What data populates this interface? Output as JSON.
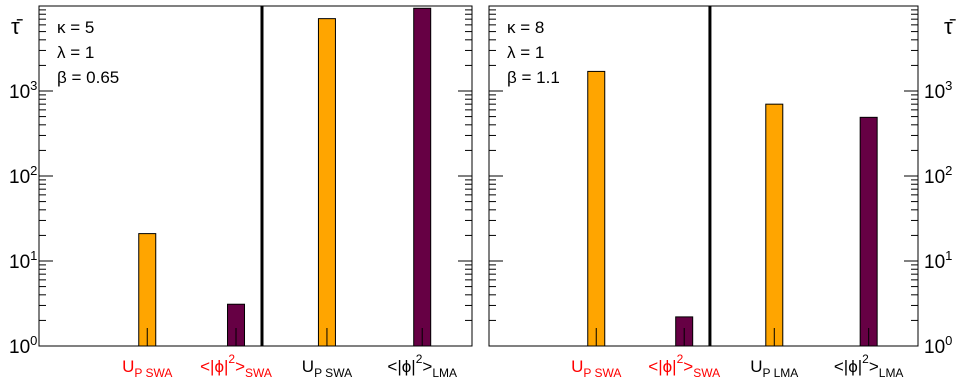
{
  "chart_data": [
    {
      "type": "bar",
      "panel": "left",
      "params": [
        "κ = 5",
        "λ = 1",
        "β = 0.65"
      ],
      "ylabel": "τ̄",
      "yscale": "log",
      "ylim": [
        1,
        10000
      ],
      "ytick_labels": [
        {
          "base": "10",
          "exp": "0"
        },
        {
          "base": "10",
          "exp": "1"
        },
        {
          "base": "10",
          "exp": "2"
        },
        {
          "base": "10",
          "exp": "3"
        }
      ],
      "categories": [
        {
          "main": "U",
          "sub": "P SWA",
          "sup": "",
          "color": "#ff0000"
        },
        {
          "main": "<|ϕ|",
          "sup": "2",
          "tail": ">",
          "sub": "SWA",
          "color": "#ff0000"
        },
        {
          "main": "U",
          "sub": "P SWA",
          "sup": "",
          "color": "#000000"
        },
        {
          "main": "<|ϕ|",
          "sup": "2",
          "tail": ">",
          "sub": "LMA",
          "color": "#000000"
        }
      ],
      "values": [
        21,
        3.1,
        7100,
        9400
      ],
      "bar_colors": [
        "#ffa500",
        "#660044",
        "#ffa500",
        "#660044"
      ],
      "error_bars": true,
      "divider_after_category": 2,
      "grid": false
    },
    {
      "type": "bar",
      "panel": "right",
      "params": [
        "κ = 8",
        "λ = 1",
        "β = 1.1"
      ],
      "ylabel": "τ̄",
      "yscale": "log",
      "ylim": [
        1,
        10000
      ],
      "ytick_labels": [
        {
          "base": "10",
          "exp": "0"
        },
        {
          "base": "10",
          "exp": "1"
        },
        {
          "base": "10",
          "exp": "2"
        },
        {
          "base": "10",
          "exp": "3"
        }
      ],
      "categories": [
        {
          "main": "U",
          "sub": "P SWA",
          "sup": "",
          "color": "#ff0000"
        },
        {
          "main": "<|ϕ|",
          "sup": "2",
          "tail": ">",
          "sub": "SWA",
          "color": "#ff0000"
        },
        {
          "main": "U",
          "sub": "P LMA",
          "sup": "",
          "color": "#000000"
        },
        {
          "main": "<|ϕ|",
          "sup": "2",
          "tail": ">",
          "sub": "LMA",
          "color": "#000000"
        }
      ],
      "values": [
        1700,
        2.2,
        700,
        490
      ],
      "bar_colors": [
        "#ffa500",
        "#660044",
        "#ffa500",
        "#660044"
      ],
      "error_bars": true,
      "divider_after_category": 2,
      "grid": false
    }
  ]
}
